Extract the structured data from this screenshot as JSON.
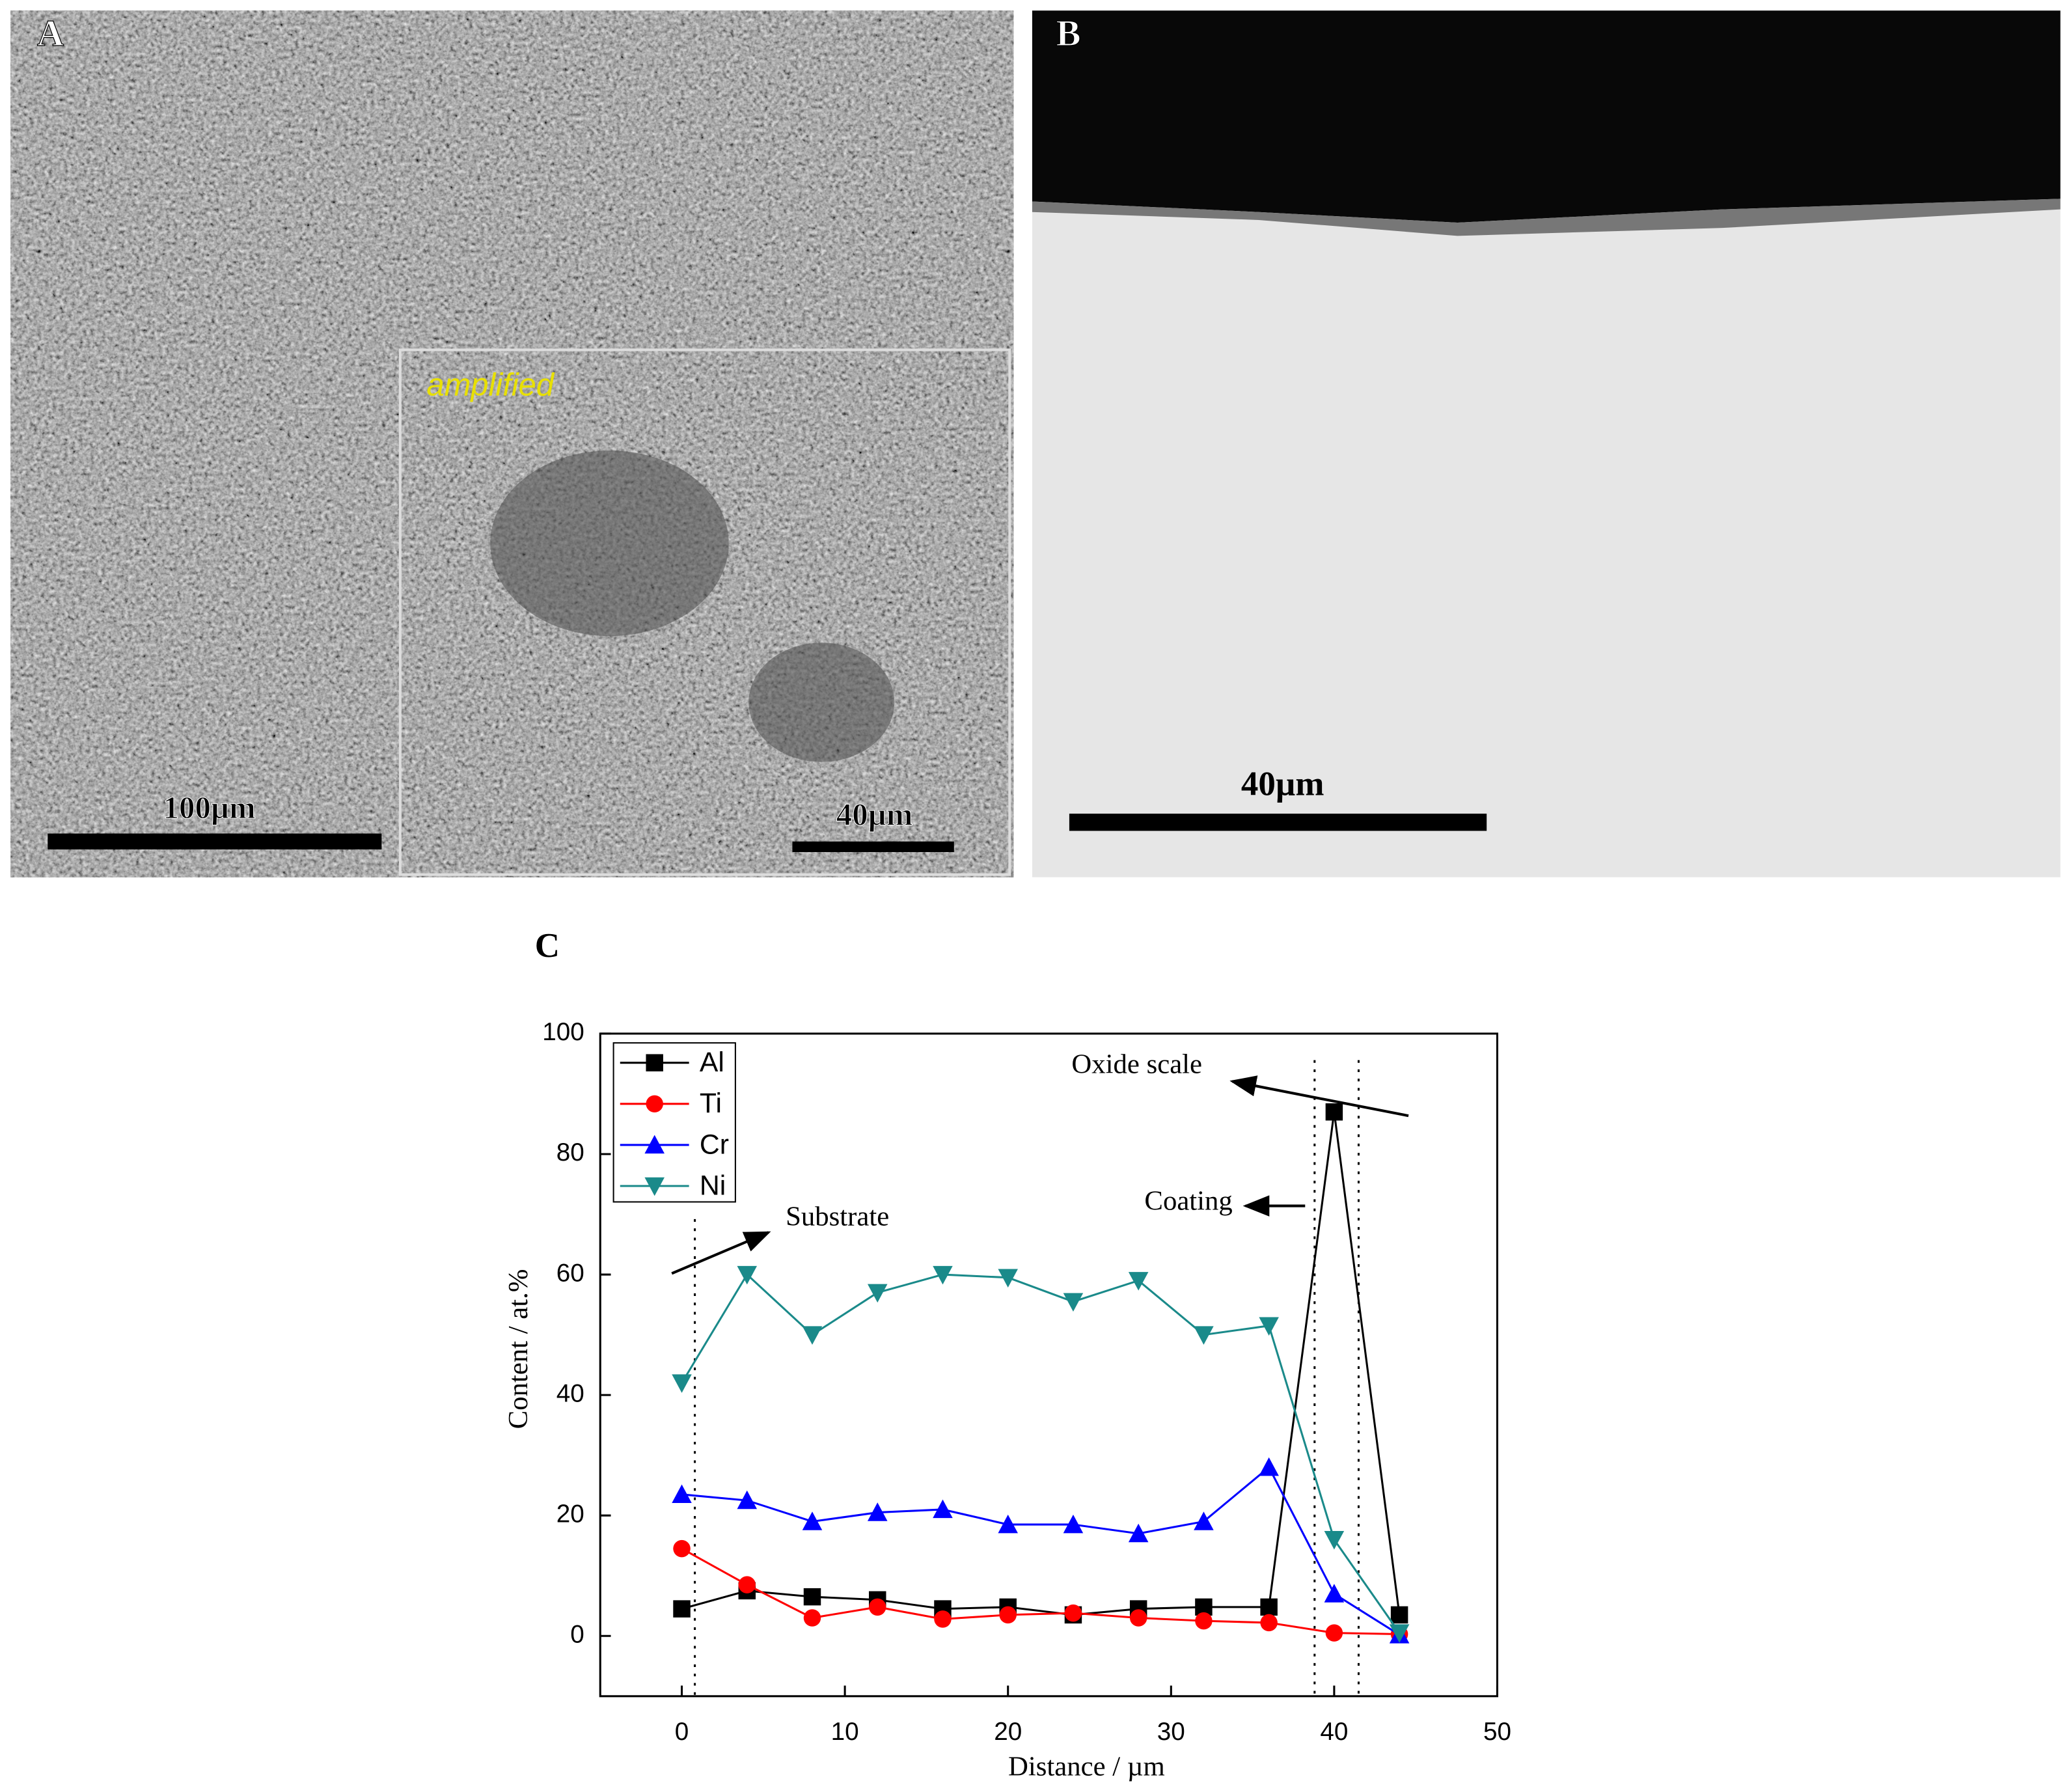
{
  "panels": {
    "A": {
      "label": "A",
      "inset_label": "amplified",
      "scale_bar": "100µm",
      "inset_scale_bar": "40µm"
    },
    "B": {
      "label": "B",
      "scale_bar": "40µm"
    }
  },
  "chart_data": {
    "type": "line",
    "title": "C",
    "x_label": "Distance / µm",
    "y_label": "Content / at.%",
    "x": [
      0,
      4,
      8,
      12,
      16,
      20,
      24,
      28,
      32,
      36,
      40,
      44
    ],
    "series": [
      {
        "name": "Al",
        "color": "#000000",
        "marker": "square",
        "values": [
          4.5,
          7.5,
          6.5,
          6,
          4.5,
          4.8,
          3.5,
          4.5,
          4.8,
          4.8,
          87,
          3.5
        ]
      },
      {
        "name": "Ti",
        "color": "#ff0000",
        "marker": "circle",
        "values": [
          14.5,
          8.5,
          3,
          4.8,
          2.8,
          3.5,
          3.8,
          3,
          2.5,
          2.2,
          0.5,
          0.3
        ]
      },
      {
        "name": "Cr",
        "color": "#0000ff",
        "marker": "triangle-up",
        "values": [
          23.5,
          22.5,
          19,
          20.5,
          21,
          18.5,
          18.5,
          17,
          19,
          28,
          7,
          0.2
        ]
      },
      {
        "name": "Ni",
        "color": "#1a8a8a",
        "marker": "triangle-down",
        "values": [
          42,
          60,
          50,
          57,
          60,
          59.5,
          55.5,
          59,
          50,
          51.5,
          16,
          0.5
        ]
      }
    ],
    "xlim": [
      -5,
      50
    ],
    "xticks": [
      0,
      10,
      20,
      30,
      40,
      50
    ],
    "ylim": [
      -10,
      100
    ],
    "yticks": [
      0,
      20,
      40,
      60,
      80,
      100
    ],
    "boundaries": [
      0.8,
      38.8,
      41.5
    ],
    "annotations": [
      "Oxide scale",
      "Coating",
      "Substrate"
    ],
    "legend": "upper left"
  }
}
